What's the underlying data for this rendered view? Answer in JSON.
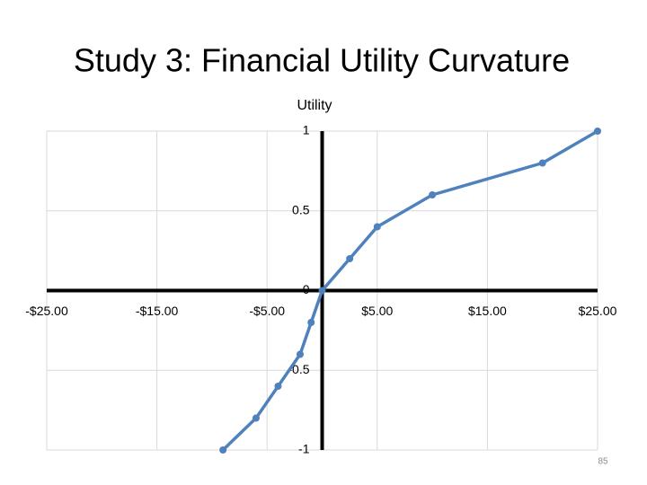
{
  "chart_data": {
    "type": "line",
    "title": "Study 3: Financial Utility Curvature",
    "ylabel": "Utility",
    "x": [
      -9,
      -6,
      -4,
      -2,
      -1,
      0,
      2.5,
      5,
      10,
      20,
      25
    ],
    "values": [
      -1,
      -0.8,
      -0.6,
      -0.4,
      -0.2,
      0,
      0.2,
      0.4,
      0.6,
      0.8,
      1
    ],
    "color": "#4f81bd",
    "xlim": [
      -25,
      25
    ],
    "xticks": [
      {
        "value": -25,
        "label": "-$25.00"
      },
      {
        "value": -15,
        "label": "-$15.00"
      },
      {
        "value": -5,
        "label": "-$5.00"
      },
      {
        "value": 5,
        "label": "$5.00"
      },
      {
        "value": 15,
        "label": "$15.00"
      },
      {
        "value": 25,
        "label": "$25.00"
      }
    ],
    "ylim": [
      -1,
      1
    ],
    "yticks": [
      -1,
      -0.5,
      0,
      0.5,
      1
    ],
    "grid": true
  },
  "page_number": "85"
}
